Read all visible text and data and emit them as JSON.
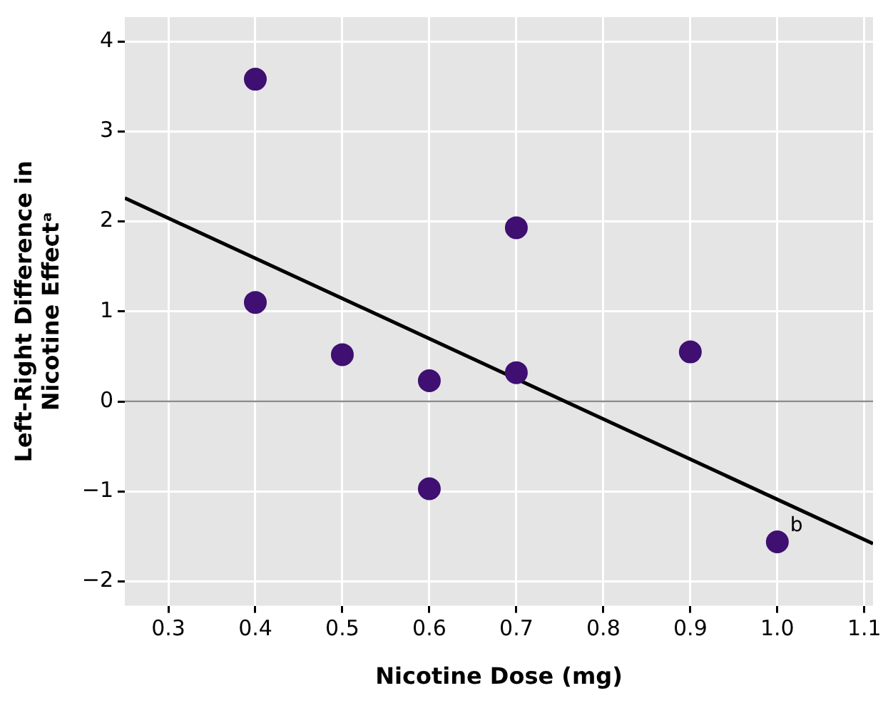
{
  "chart_data": {
    "type": "scatter",
    "xlabel": "Nicotine Dose (mg)",
    "ylabel": "Left-Right Difference in\nNicotine Effectᵃ",
    "x": [
      0.4,
      0.4,
      0.5,
      0.6,
      0.6,
      0.7,
      0.7,
      0.9,
      1.0
    ],
    "series": [
      {
        "color": "#3f0f72",
        "marker": "circle",
        "values": [
          3.58,
          1.1,
          0.52,
          0.23,
          -0.97,
          1.93,
          0.32,
          0.55,
          -1.56
        ]
      },
      {
        "type": "line",
        "marker": "none",
        "color": "#000000",
        "x": [
          0.25,
          1.11
        ],
        "values": [
          2.26,
          -1.58
        ]
      }
    ],
    "xlim": [
      0.25,
      1.11
    ],
    "xticks": [
      {
        "value": 0.3,
        "label": "0.3"
      },
      {
        "value": 0.4,
        "label": "0.4"
      },
      {
        "value": 0.5,
        "label": "0.5"
      },
      {
        "value": 0.6,
        "label": "0.6"
      },
      {
        "value": 0.7,
        "label": "0.7"
      },
      {
        "value": 0.8,
        "label": "0.8"
      },
      {
        "value": 0.9,
        "label": "0.9"
      },
      {
        "value": 1.0,
        "label": "1.0"
      },
      {
        "value": 1.1,
        "label": "1.1"
      }
    ],
    "ylim": [
      -2.27,
      4.27
    ],
    "yticks": [
      {
        "value": -2,
        "label": "−2"
      },
      {
        "value": -1,
        "label": "−1"
      },
      0,
      1,
      2,
      3,
      4
    ],
    "ref_lines": [
      {
        "axis": "y",
        "value": 0,
        "color": "#8c8c8c"
      }
    ],
    "annotations": [
      {
        "text": "b",
        "x": 1.0,
        "y": -1.56
      }
    ],
    "grid": true,
    "legend": false
  }
}
